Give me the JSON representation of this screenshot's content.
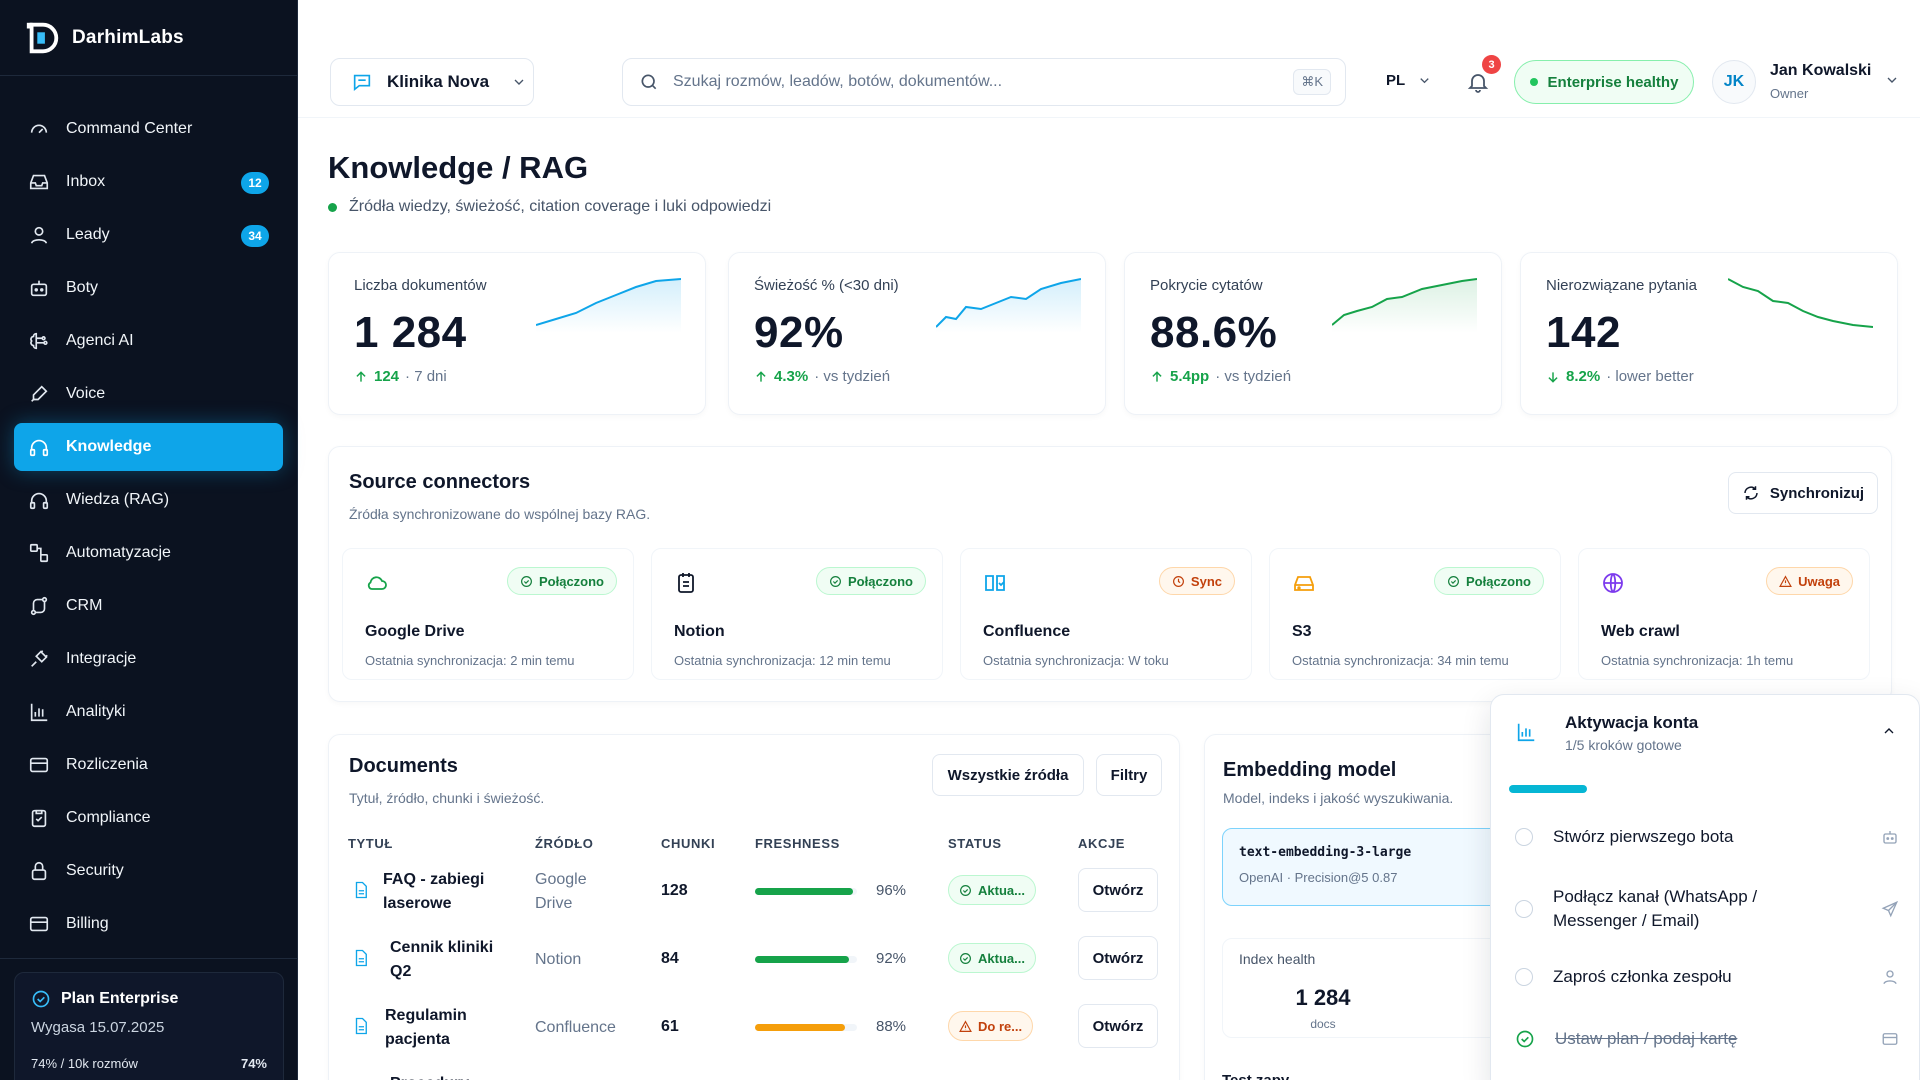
{
  "brand": {
    "name": "DarhimLabs"
  },
  "sidebar": {
    "items": [
      {
        "label": "Command Center",
        "icon": "gauge-icon"
      },
      {
        "label": "Inbox",
        "icon": "inbox-icon",
        "badge": "12"
      },
      {
        "label": "Leady",
        "icon": "user-icon",
        "badge": "34"
      },
      {
        "label": "Boty",
        "icon": "bot-icon"
      },
      {
        "label": "Agenci AI",
        "icon": "brain-icon"
      },
      {
        "label": "Voice",
        "icon": "microphone-icon"
      },
      {
        "label": "Knowledge",
        "icon": "headphones-icon",
        "active": true
      },
      {
        "label": "Wiedza (RAG)",
        "icon": "headphones-icon"
      },
      {
        "label": "Automatyzacje",
        "icon": "workflow-icon"
      },
      {
        "label": "CRM",
        "icon": "route-icon"
      },
      {
        "label": "Integracje",
        "icon": "plug-icon"
      },
      {
        "label": "Analityki",
        "icon": "bar-chart-icon"
      },
      {
        "label": "Rozliczenia",
        "icon": "credit-card-icon"
      },
      {
        "label": "Compliance",
        "icon": "clipboard-check-icon"
      },
      {
        "label": "Security",
        "icon": "lock-icon"
      },
      {
        "label": "Billing",
        "icon": "credit-card-icon"
      }
    ],
    "plan": {
      "title": "Plan Enterprise",
      "expires": "Wygasa 15.07.2025",
      "usage_label": "74% / 10k rozmów",
      "usage_pct": "74%"
    }
  },
  "topbar": {
    "org": "Klinika Nova",
    "search_placeholder": "Szukaj rozmów, leadów, botów, dokumentów...",
    "shortcut": "⌘K",
    "lang": "PL",
    "notifications": "3",
    "health": "Enterprise healthy",
    "user_initials": "JK",
    "user_name": "Jan Kowalski",
    "user_role": "Owner"
  },
  "page": {
    "title": "Knowledge / RAG",
    "subtitle": "Źródła wiedzy, świeżość, citation coverage i luki odpowiedzi"
  },
  "kpis": [
    {
      "label": "Liczba dokumentów",
      "value": "1 284",
      "delta": "124",
      "context": "· 7 dni",
      "trend": "up",
      "color": "#0ea5e9"
    },
    {
      "label": "Świeżość % (<30 dni)",
      "value": "92%",
      "delta": "4.3%",
      "context": "· vs tydzień",
      "trend": "up",
      "color": "#0ea5e9"
    },
    {
      "label": "Pokrycie cytatów",
      "value": "88.6%",
      "delta": "5.4pp",
      "context": "· vs tydzień",
      "trend": "up",
      "color": "#16a34a"
    },
    {
      "label": "Nierozwiązane pytania",
      "value": "142",
      "delta": "8.2%",
      "context": "· lower better",
      "trend": "down",
      "color": "#16a34a"
    }
  ],
  "connectors": {
    "title": "Source connectors",
    "subtitle": "Źródła synchronizowane do wspólnej bazy RAG.",
    "sync_button": "Synchronizuj",
    "items": [
      {
        "name": "Google Drive",
        "status": "Połączono",
        "kind": "ok",
        "icon": "cloud-icon",
        "last": "Ostatnia synchronizacja: 2 min temu"
      },
      {
        "name": "Notion",
        "status": "Połączono",
        "kind": "ok",
        "icon": "notepad-icon",
        "last": "Ostatnia synchronizacja: 12 min temu"
      },
      {
        "name": "Confluence",
        "status": "Sync",
        "kind": "sync",
        "icon": "book-open-icon",
        "last": "Ostatnia synchronizacja: W toku"
      },
      {
        "name": "S3",
        "status": "Połączono",
        "kind": "ok",
        "icon": "hard-drive-icon",
        "last": "Ostatnia synchronizacja: 34 min temu"
      },
      {
        "name": "Web crawl",
        "status": "Uwaga",
        "kind": "warn",
        "icon": "globe-icon",
        "last": "Ostatnia synchronizacja: 1h temu"
      }
    ]
  },
  "documents": {
    "title": "Documents",
    "subtitle": "Tytuł, źródło, chunki i świeżość.",
    "filter_source": "Wszystkie źródła",
    "filter_button": "Filtry",
    "columns": [
      "TYTUŁ",
      "ŹRÓDŁO",
      "CHUNKI",
      "FRESHNESS",
      "STATUS",
      "AKCJE"
    ],
    "rows": [
      {
        "title_l1": "FAQ - zabiegi",
        "title_l2": "laserowe",
        "src_l1": "Google",
        "src_l2": "Drive",
        "chunks": "128",
        "freshness": 96,
        "freshness_label": "96%",
        "status": "Aktua...",
        "kind": "ok",
        "action": "Otwórz"
      },
      {
        "title_l1": "Cennik kliniki",
        "title_l2": "Q2",
        "src_l1": "Notion",
        "src_l2": "",
        "chunks": "84",
        "freshness": 92,
        "freshness_label": "92%",
        "status": "Aktua...",
        "kind": "ok",
        "action": "Otwórz"
      },
      {
        "title_l1": "Regulamin",
        "title_l2": "pacjenta",
        "src_l1": "Confluence",
        "src_l2": "",
        "chunks": "61",
        "freshness": 88,
        "freshness_label": "88%",
        "status": "Do re...",
        "kind": "warn",
        "action": "Otwórz"
      },
      {
        "title_l1": "Procedury",
        "title_l2": "",
        "src_l1": "",
        "src_l2": "",
        "chunks": "",
        "freshness": 0,
        "freshness_label": "",
        "status": "",
        "kind": "ok",
        "action": ""
      }
    ]
  },
  "embedding": {
    "title": "Embedding model",
    "subtitle": "Model, indeks i jakość wyszukiwania.",
    "model": "text-embedding-3-large",
    "meta": "OpenAI · Precision@5 0.87",
    "index_label": "Index health",
    "index_value": "1 284",
    "index_unit": "docs",
    "next_label": "Test zapy"
  },
  "onboarding": {
    "title": "Aktywacja konta",
    "subtitle": "1/5 kroków gotowe",
    "progress": 0.2,
    "steps": [
      {
        "label_l1": "Stwórz pierwszego bota",
        "label_l2": "",
        "icon": "bot-icon",
        "done": false
      },
      {
        "label_l1": "Podłącz kanał (WhatsApp /",
        "label_l2": "Messenger / Email)",
        "icon": "send-icon",
        "done": false
      },
      {
        "label_l1": "Zaproś członka zespołu",
        "label_l2": "",
        "icon": "user-icon",
        "done": false
      },
      {
        "label_l1": "Ustaw plan / podaj kartę",
        "label_l2": "",
        "icon": "credit-card-icon",
        "done": true
      }
    ]
  }
}
